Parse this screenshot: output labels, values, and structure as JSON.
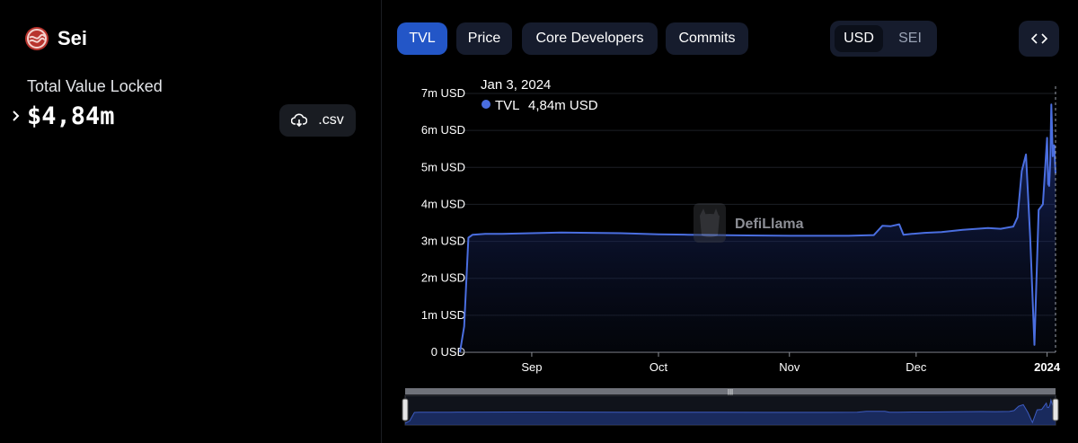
{
  "protocol": {
    "name": "Sei"
  },
  "metric": {
    "label": "Total Value Locked",
    "value": "$4,84m"
  },
  "csv_button": {
    "label": ".csv"
  },
  "tabs": [
    {
      "label": "TVL",
      "active": true
    },
    {
      "label": "Price",
      "active": false
    },
    {
      "label": "Core Developers",
      "active": false
    },
    {
      "label": "Commits",
      "active": false
    }
  ],
  "denomination": {
    "options": [
      "USD",
      "SEI"
    ],
    "selected": "USD"
  },
  "tooltip": {
    "date": "Jan 3, 2024",
    "series": "TVL",
    "value": "4,84m USD"
  },
  "watermark": "DefiLlama",
  "colors": {
    "line": "#4a6ee0",
    "accent": "#2356c7",
    "logo": "#b8342e"
  },
  "chart_data": {
    "type": "area",
    "y_unit": "USD",
    "ylim": [
      0,
      7000000
    ],
    "yticks": [
      0,
      1000000,
      2000000,
      3000000,
      4000000,
      5000000,
      6000000,
      7000000
    ],
    "ytick_labels": [
      "0 USD",
      "1m USD",
      "2m USD",
      "3m USD",
      "4m USD",
      "5m USD",
      "6m USD",
      "7m USD"
    ],
    "xlim": [
      "2023-08-15",
      "2024-01-03"
    ],
    "xticks": [
      {
        "date": "2023-09-01",
        "label": "Sep"
      },
      {
        "date": "2023-10-01",
        "label": "Oct"
      },
      {
        "date": "2023-11-01",
        "label": "Nov"
      },
      {
        "date": "2023-12-01",
        "label": "Dec"
      },
      {
        "date": "2024-01-01",
        "label": "2024"
      }
    ],
    "grid": true,
    "series": [
      {
        "name": "TVL",
        "points": [
          [
            "2023-08-15",
            0
          ],
          [
            "2023-08-16",
            700000
          ],
          [
            "2023-08-17",
            3100000
          ],
          [
            "2023-08-18",
            3180000
          ],
          [
            "2023-08-21",
            3200000
          ],
          [
            "2023-08-25",
            3200000
          ],
          [
            "2023-09-01",
            3220000
          ],
          [
            "2023-09-08",
            3240000
          ],
          [
            "2023-09-15",
            3230000
          ],
          [
            "2023-09-22",
            3220000
          ],
          [
            "2023-10-01",
            3190000
          ],
          [
            "2023-10-08",
            3180000
          ],
          [
            "2023-10-15",
            3170000
          ],
          [
            "2023-10-22",
            3160000
          ],
          [
            "2023-11-01",
            3150000
          ],
          [
            "2023-11-08",
            3150000
          ],
          [
            "2023-11-15",
            3150000
          ],
          [
            "2023-11-21",
            3170000
          ],
          [
            "2023-11-23",
            3420000
          ],
          [
            "2023-11-25",
            3410000
          ],
          [
            "2023-11-27",
            3460000
          ],
          [
            "2023-11-28",
            3180000
          ],
          [
            "2023-11-30",
            3200000
          ],
          [
            "2023-12-03",
            3230000
          ],
          [
            "2023-12-07",
            3250000
          ],
          [
            "2023-12-12",
            3310000
          ],
          [
            "2023-12-18",
            3360000
          ],
          [
            "2023-12-21",
            3340000
          ],
          [
            "2023-12-24",
            3400000
          ],
          [
            "2023-12-25",
            3650000
          ],
          [
            "2023-12-26",
            4900000
          ],
          [
            "2023-12-27",
            5350000
          ],
          [
            "2023-12-28",
            3100000
          ],
          [
            "2023-12-29",
            200000
          ],
          [
            "2023-12-30",
            3850000
          ],
          [
            "2023-12-31",
            4000000
          ],
          [
            "2024-01-01",
            5800000
          ],
          [
            "2024-01-01T06:00",
            4550000
          ],
          [
            "2024-01-01T12:00",
            4500000
          ],
          [
            "2024-01-01T18:00",
            5150000
          ],
          [
            "2024-01-02",
            6700000
          ],
          [
            "2024-01-02T08:00",
            5300000
          ],
          [
            "2024-01-02T16:00",
            5600000
          ],
          [
            "2024-01-03",
            4840000
          ]
        ]
      }
    ]
  }
}
